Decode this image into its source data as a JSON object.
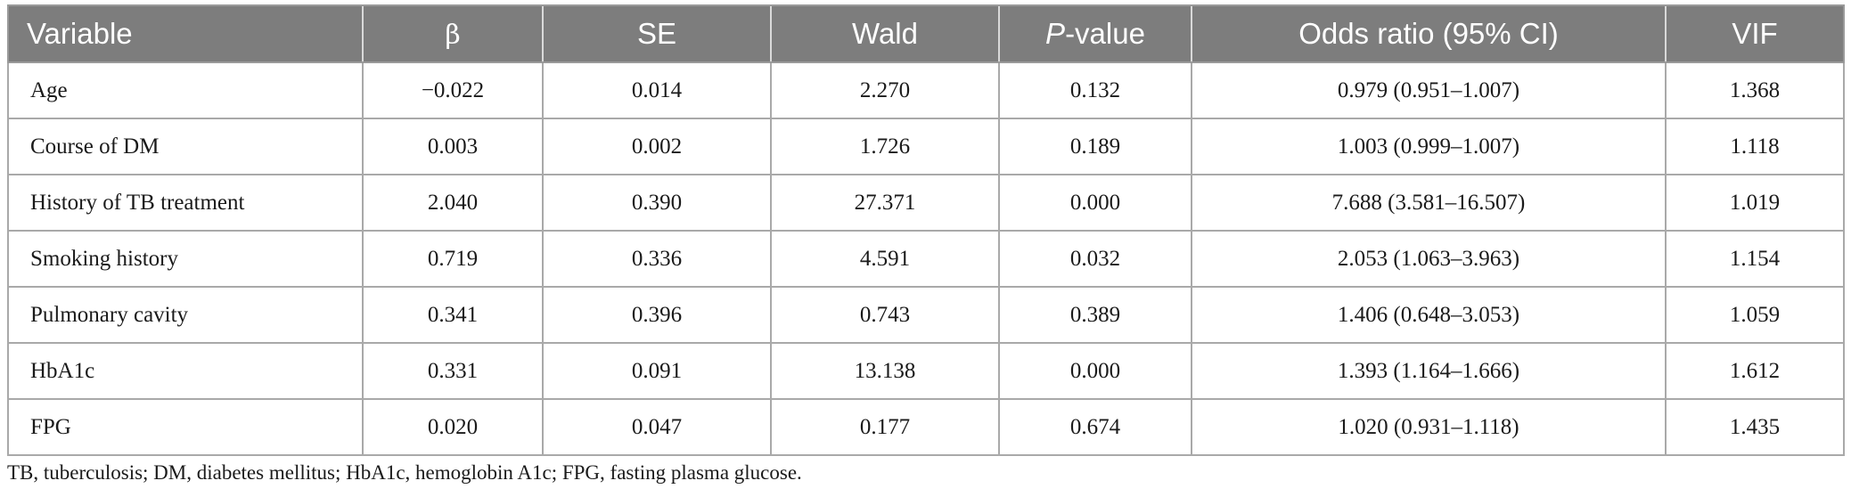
{
  "table": {
    "headers": {
      "variable": "Variable",
      "beta": "β",
      "se": "SE",
      "wald": "Wald",
      "p_prefix": "P",
      "p_suffix": "-value",
      "odds_ratio": "Odds ratio (95% CI)",
      "vif": "VIF"
    },
    "rows": [
      {
        "variable": "Age",
        "beta": "−0.022",
        "se": "0.014",
        "wald": "2.270",
        "p": "0.132",
        "or": "0.979 (0.951–1.007)",
        "vif": "1.368"
      },
      {
        "variable": "Course of DM",
        "beta": "0.003",
        "se": "0.002",
        "wald": "1.726",
        "p": "0.189",
        "or": "1.003 (0.999–1.007)",
        "vif": "1.118"
      },
      {
        "variable": "History of TB treatment",
        "beta": "2.040",
        "se": "0.390",
        "wald": "27.371",
        "p": "0.000",
        "or": "7.688 (3.581–16.507)",
        "vif": "1.019"
      },
      {
        "variable": "Smoking history",
        "beta": "0.719",
        "se": "0.336",
        "wald": "4.591",
        "p": "0.032",
        "or": "2.053 (1.063–3.963)",
        "vif": "1.154"
      },
      {
        "variable": "Pulmonary cavity",
        "beta": "0.341",
        "se": "0.396",
        "wald": "0.743",
        "p": "0.389",
        "or": "1.406 (0.648–3.053)",
        "vif": "1.059"
      },
      {
        "variable": "HbA1c",
        "beta": "0.331",
        "se": "0.091",
        "wald": "13.138",
        "p": "0.000",
        "or": "1.393 (1.164–1.666)",
        "vif": "1.612"
      },
      {
        "variable": "FPG",
        "beta": "0.020",
        "se": "0.047",
        "wald": "0.177",
        "p": "0.674",
        "or": "1.020 (0.931–1.118)",
        "vif": "1.435"
      }
    ]
  },
  "footnote": "TB, tuberculosis; DM, diabetes mellitus; HbA1c, hemoglobin A1c; FPG, fasting plasma glucose.",
  "colors": {
    "header_bg": "#7d7d7d",
    "header_text": "#ffffff",
    "border": "#a9a9a9",
    "body_text": "#1a1a1a"
  }
}
